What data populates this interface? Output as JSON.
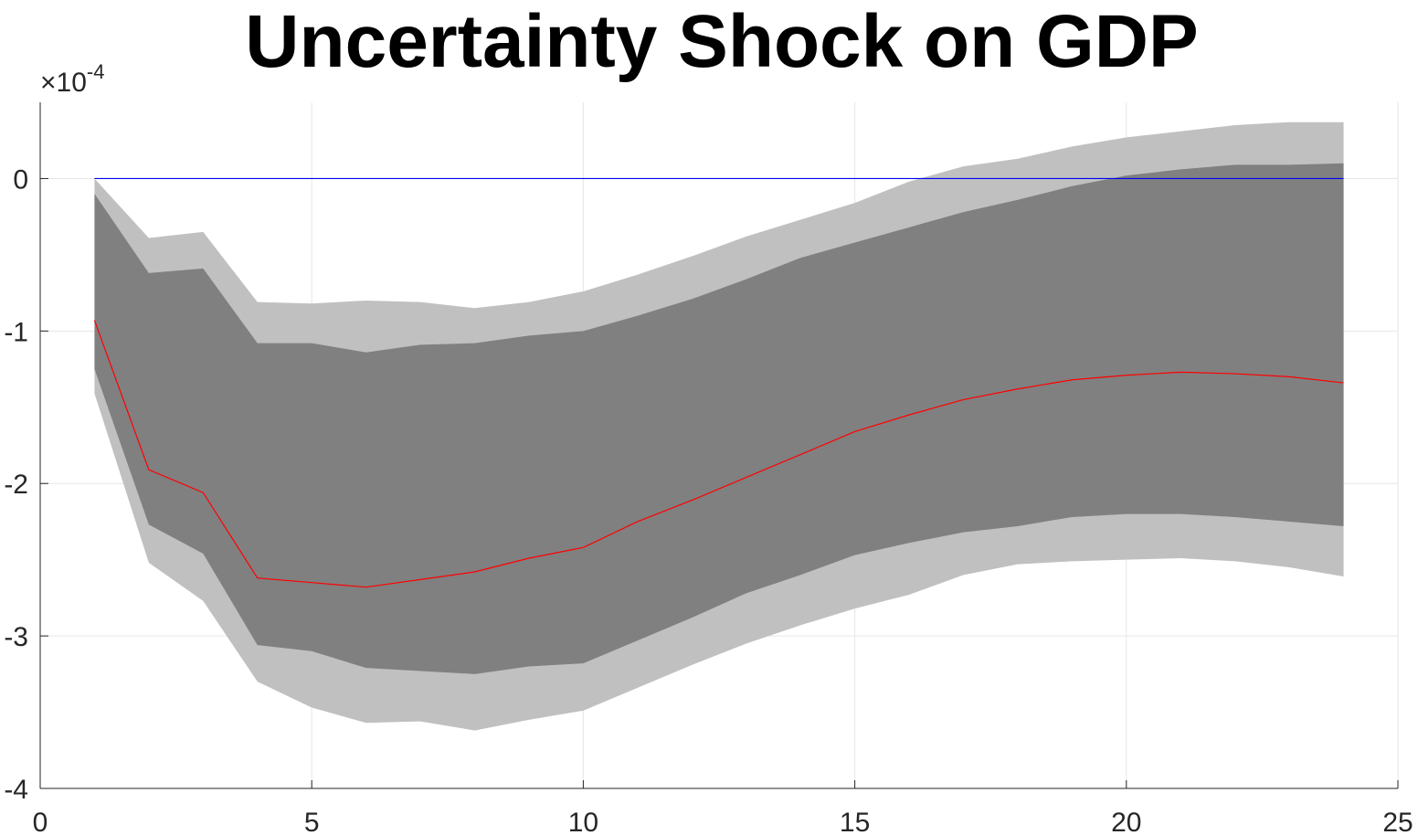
{
  "chart_data": {
    "type": "area",
    "title": "Uncertainty Shock on GDP",
    "xlabel": "",
    "ylabel": "",
    "xlim": [
      0,
      25
    ],
    "ylim": [
      -4,
      0.5
    ],
    "y_multiplier_base": "10",
    "y_multiplier_exponent": "-4",
    "x_ticks": [
      0,
      5,
      10,
      15,
      20,
      25
    ],
    "y_ticks": [
      -4,
      -3,
      -2,
      -1,
      0
    ],
    "grid": true,
    "legend": "none",
    "x": [
      1,
      2,
      3,
      4,
      5,
      6,
      7,
      8,
      9,
      10,
      11,
      12,
      13,
      14,
      15,
      16,
      17,
      18,
      19,
      20,
      21,
      22,
      23,
      24
    ],
    "bands": [
      {
        "color": "#c0c0c0",
        "upper": [
          0.0,
          -0.39,
          -0.35,
          -0.81,
          -0.82,
          -0.8,
          -0.81,
          -0.85,
          -0.81,
          -0.74,
          -0.63,
          -0.51,
          -0.38,
          -0.27,
          -0.16,
          -0.02,
          0.08,
          0.13,
          0.21,
          0.27,
          0.31,
          0.35,
          0.37,
          0.37
        ],
        "lower": [
          -1.41,
          -2.52,
          -2.77,
          -3.3,
          -3.47,
          -3.57,
          -3.56,
          -3.62,
          -3.55,
          -3.49,
          -3.34,
          -3.19,
          -3.05,
          -2.93,
          -2.82,
          -2.73,
          -2.6,
          -2.53,
          -2.51,
          -2.5,
          -2.49,
          -2.51,
          -2.55,
          -2.61
        ]
      },
      {
        "color": "#808080",
        "upper": [
          -0.1,
          -0.62,
          -0.59,
          -1.08,
          -1.08,
          -1.14,
          -1.09,
          -1.08,
          -1.03,
          -1.0,
          -0.9,
          -0.79,
          -0.66,
          -0.52,
          -0.42,
          -0.32,
          -0.22,
          -0.14,
          -0.05,
          0.02,
          0.06,
          0.09,
          0.09,
          0.1
        ],
        "lower": [
          -1.25,
          -2.27,
          -2.46,
          -3.06,
          -3.1,
          -3.21,
          -3.23,
          -3.25,
          -3.2,
          -3.18,
          -3.03,
          -2.88,
          -2.72,
          -2.6,
          -2.47,
          -2.39,
          -2.32,
          -2.28,
          -2.22,
          -2.2,
          -2.2,
          -2.22,
          -2.25,
          -2.28
        ]
      }
    ],
    "series": [
      {
        "color": "#ff0000",
        "values": [
          -0.93,
          -1.91,
          -2.06,
          -2.62,
          -2.65,
          -2.68,
          -2.63,
          -2.58,
          -2.49,
          -2.42,
          -2.25,
          -2.11,
          -1.96,
          -1.81,
          -1.66,
          -1.55,
          -1.45,
          -1.38,
          -1.32,
          -1.29,
          -1.27,
          -1.28,
          -1.3,
          -1.34
        ]
      },
      {
        "color": "#0000ff",
        "values": [
          0,
          0,
          0,
          0,
          0,
          0,
          0,
          0,
          0,
          0,
          0,
          0,
          0,
          0,
          0,
          0,
          0,
          0,
          0,
          0,
          0,
          0,
          0,
          0
        ]
      }
    ]
  }
}
